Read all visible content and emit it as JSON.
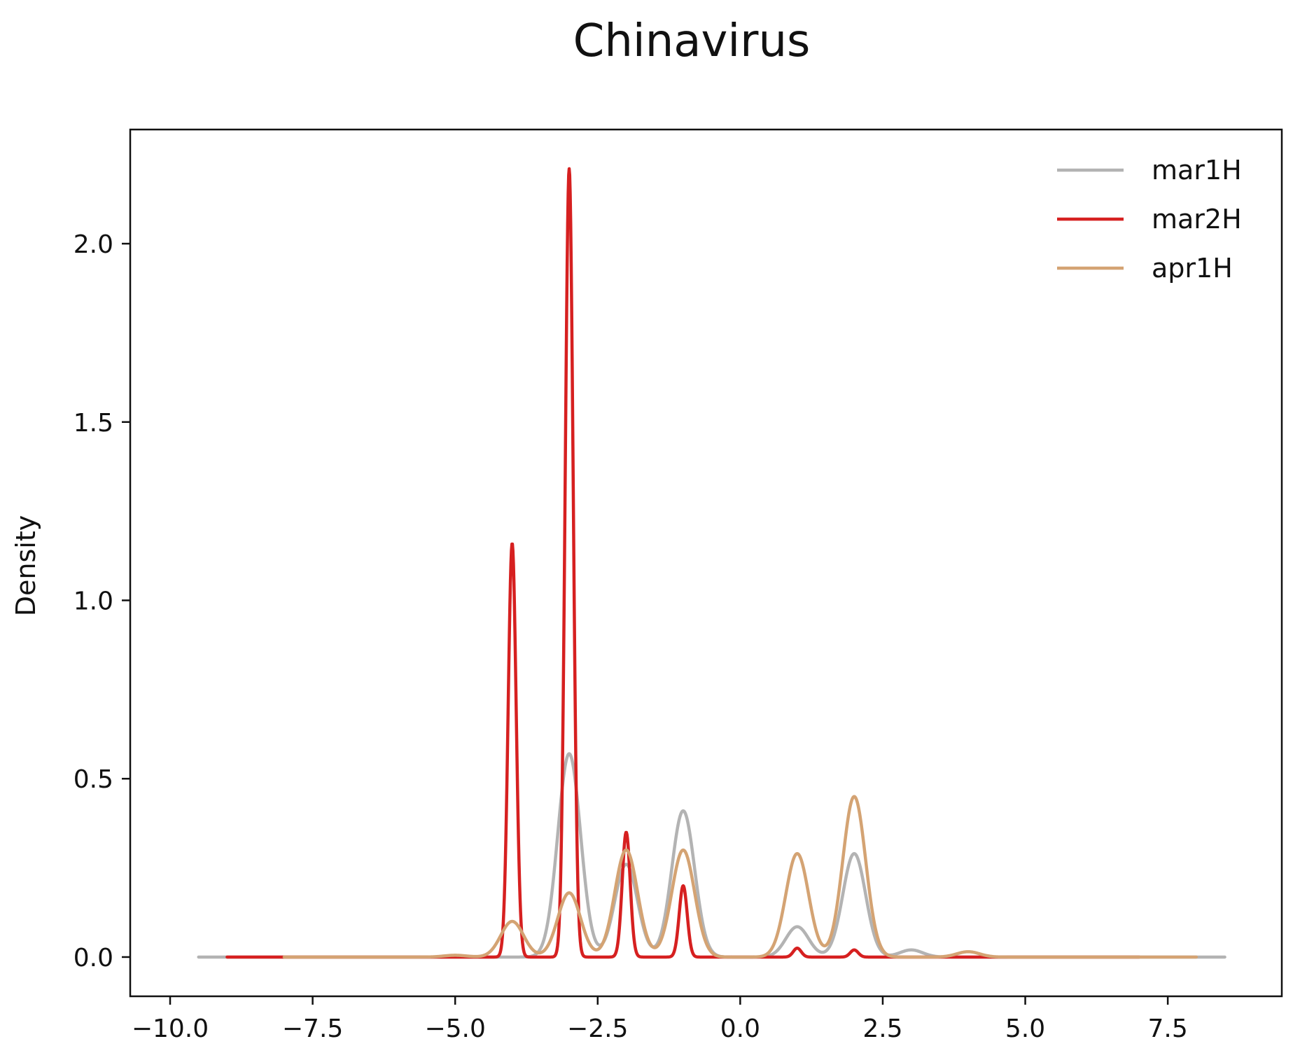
{
  "chart_data": {
    "type": "line",
    "title": "Chinavirus",
    "xlabel": "",
    "ylabel": "Density",
    "xlim": [
      -10.7,
      9.5
    ],
    "ylim": [
      -0.11,
      2.32
    ],
    "xticks": [
      -10.0,
      -7.5,
      -5.0,
      -2.5,
      0.0,
      2.5,
      5.0,
      7.5
    ],
    "xtick_labels": [
      "−10.0",
      "−7.5",
      "−5.0",
      "−2.5",
      "0.0",
      "2.5",
      "5.0",
      "7.5"
    ],
    "yticks": [
      0.0,
      0.5,
      1.0,
      1.5,
      2.0
    ],
    "ytick_labels": [
      "0.0",
      "0.5",
      "1.0",
      "1.5",
      "2.0"
    ],
    "grid": false,
    "legend_position": "top-right",
    "series": [
      {
        "name": "mar1H",
        "color": "#b3b3b3",
        "x_range": [
          -9.5,
          8.5
        ],
        "peaks": [
          {
            "x": -3.0,
            "height": 0.57,
            "width": 0.2
          },
          {
            "x": -2.0,
            "height": 0.26,
            "width": 0.2
          },
          {
            "x": -1.0,
            "height": 0.41,
            "width": 0.2
          },
          {
            "x": 1.0,
            "height": 0.085,
            "width": 0.2
          },
          {
            "x": 2.0,
            "height": 0.29,
            "width": 0.2
          },
          {
            "x": 3.0,
            "height": 0.02,
            "width": 0.2
          }
        ]
      },
      {
        "name": "mar2H",
        "color": "#d62020",
        "x_range": [
          -9.0,
          7.0
        ],
        "peaks": [
          {
            "x": -4.0,
            "height": 1.16,
            "width": 0.07
          },
          {
            "x": -3.0,
            "height": 2.21,
            "width": 0.07
          },
          {
            "x": -2.0,
            "height": 0.35,
            "width": 0.07
          },
          {
            "x": -1.0,
            "height": 0.2,
            "width": 0.07
          },
          {
            "x": 1.0,
            "height": 0.025,
            "width": 0.07
          },
          {
            "x": 2.0,
            "height": 0.02,
            "width": 0.07
          }
        ]
      },
      {
        "name": "apr1H",
        "color": "#d4a373",
        "x_range": [
          -8.0,
          8.0
        ],
        "peaks": [
          {
            "x": -5.0,
            "height": 0.005,
            "width": 0.2
          },
          {
            "x": -4.0,
            "height": 0.1,
            "width": 0.2
          },
          {
            "x": -3.0,
            "height": 0.18,
            "width": 0.2
          },
          {
            "x": -2.0,
            "height": 0.3,
            "width": 0.2
          },
          {
            "x": -1.0,
            "height": 0.3,
            "width": 0.2
          },
          {
            "x": 1.0,
            "height": 0.29,
            "width": 0.2
          },
          {
            "x": 2.0,
            "height": 0.45,
            "width": 0.2
          },
          {
            "x": 4.0,
            "height": 0.015,
            "width": 0.2
          }
        ]
      }
    ]
  }
}
